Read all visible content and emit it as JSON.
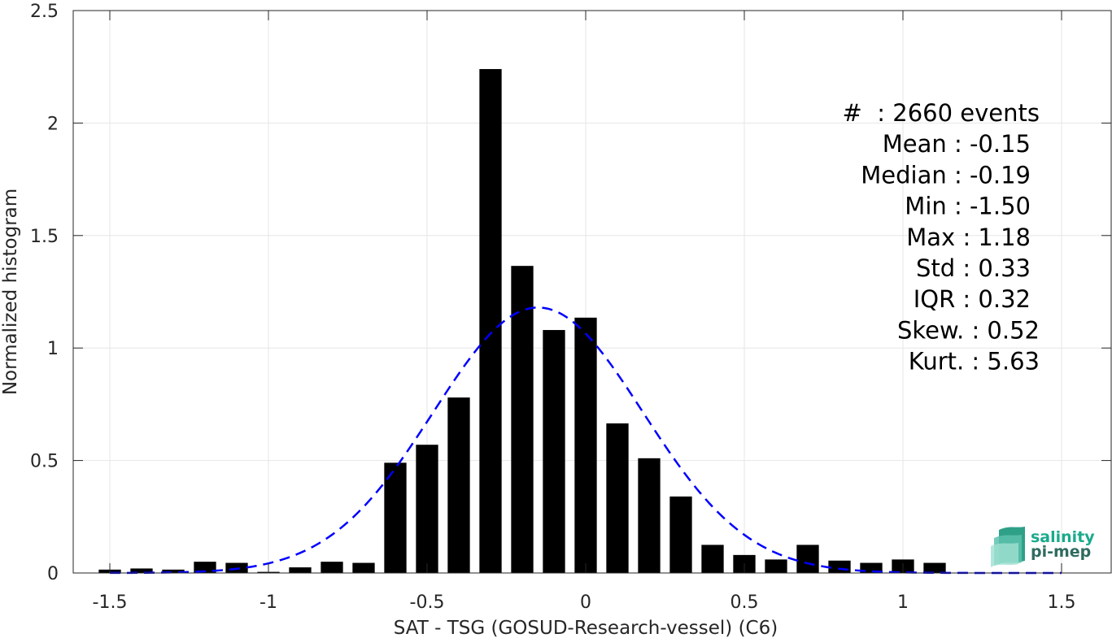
{
  "chart_data": {
    "type": "bar",
    "xlabel": "SAT - TSG (GOSUD-Research-vessel) (C6)",
    "ylabel": "Normalized histogram",
    "xlim": [
      -1.6,
      1.6
    ],
    "ylim": [
      0,
      2.5
    ],
    "x_ticks": [
      "-1.5",
      "-1",
      "-0.5",
      "0",
      "0.5",
      "1",
      "1.5"
    ],
    "y_ticks": [
      "0",
      "0.5",
      "1",
      "1.5",
      "2",
      "2.5"
    ],
    "grid": true,
    "bar_width": 0.07,
    "bins": {
      "x": [
        -1.5,
        -1.4,
        -1.3,
        -1.2,
        -1.1,
        -1.0,
        -0.9,
        -0.8,
        -0.7,
        -0.6,
        -0.5,
        -0.4,
        -0.3,
        -0.2,
        -0.1,
        0.0,
        0.1,
        0.2,
        0.3,
        0.4,
        0.5,
        0.6,
        0.7,
        0.8,
        0.9,
        1.0,
        1.1
      ],
      "values": [
        0.015,
        0.02,
        0.015,
        0.05,
        0.045,
        0.005,
        0.025,
        0.05,
        0.045,
        0.49,
        0.57,
        0.78,
        2.24,
        1.365,
        1.08,
        1.135,
        0.665,
        0.51,
        0.34,
        0.125,
        0.08,
        0.06,
        0.125,
        0.055,
        0.045,
        0.06,
        0.045
      ],
      "color": "#000000"
    },
    "fit_curve": {
      "type": "normal",
      "mean": -0.15,
      "std": 0.33,
      "peak": 1.18,
      "x_range": [
        -1.5,
        1.5
      ],
      "color": "#0000ff",
      "style": "dashed"
    },
    "stats": [
      "#  : 2660 events",
      "Mean : -0.15",
      "Median : -0.19",
      "Min : -1.50",
      "Max : 1.18",
      "Std : 0.33",
      "IQR : 0.32",
      "Skew. : 0.52",
      "Kurt. : 5.63"
    ]
  },
  "logo": {
    "line1": "salinity",
    "line2": "pi-mep",
    "color1": "#1aaa8c",
    "color2": "#2f6b5f"
  }
}
